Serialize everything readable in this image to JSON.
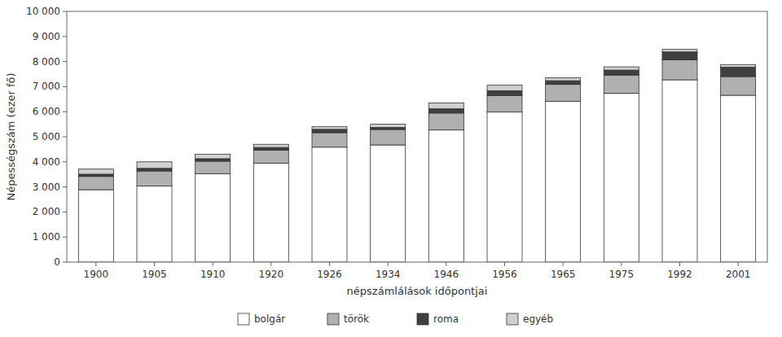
{
  "chart_data": {
    "type": "bar",
    "stacked": true,
    "xlabel": "népszámlálások időpontjai",
    "ylabel": "Népességszám (ezer fő)",
    "categories": [
      "1900",
      "1905",
      "1910",
      "1920",
      "1926",
      "1934",
      "1946",
      "1956",
      "1965",
      "1975",
      "1992",
      "2001"
    ],
    "series": [
      {
        "name": "bolgár",
        "color": "#ffffff",
        "values": [
          2887,
          3032,
          3528,
          3947,
          4585,
          4673,
          5270,
          5985,
          6408,
          6730,
          7271,
          6655
        ]
      },
      {
        "name": "török",
        "color": "#b0b0b0",
        "values": [
          531,
          602,
          497,
          520,
          577,
          618,
          675,
          656,
          680,
          730,
          800,
          747
        ]
      },
      {
        "name": "roma",
        "color": "#404040",
        "values": [
          90,
          107,
          100,
          108,
          134,
          80,
          170,
          197,
          149,
          200,
          313,
          371
        ]
      },
      {
        "name": "egyéb",
        "color": "#d0d0d0",
        "values": [
          202,
          259,
          175,
          125,
          104,
          129,
          235,
          218,
          113,
          130,
          101,
          107
        ]
      }
    ],
    "ylim": [
      0,
      10000
    ],
    "yticks": [
      0,
      {
        "value": 1000,
        "label": "1 000"
      },
      {
        "value": 2000,
        "label": "2 000"
      },
      {
        "value": 3000,
        "label": "3 000"
      },
      {
        "value": 4000,
        "label": "4 000"
      },
      {
        "value": 5000,
        "label": "5 000"
      },
      {
        "value": 6000,
        "label": "6 000"
      },
      {
        "value": 7000,
        "label": "7 000"
      },
      {
        "value": 8000,
        "label": "8 000"
      },
      {
        "value": 9000,
        "label": "9 000"
      },
      {
        "value": 10000,
        "label": "10 000"
      }
    ],
    "grid": false,
    "legend": "bottom"
  }
}
